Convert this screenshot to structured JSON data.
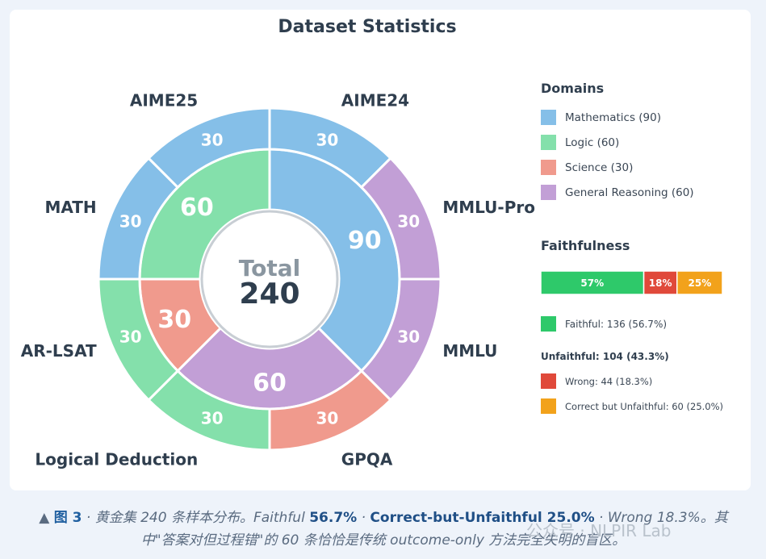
{
  "chart_data": {
    "type": "pie",
    "title": "Dataset Statistics",
    "center": {
      "label": "Total",
      "value": "240"
    },
    "inner_ring": [
      {
        "name": "Mathematics",
        "value": 90,
        "label": "90",
        "color": "#85bfe8"
      },
      {
        "name": "General Reasoning",
        "value": 60,
        "label": "60",
        "color": "#c29fd6"
      },
      {
        "name": "Science",
        "value": 30,
        "label": "30",
        "color": "#f09a8d"
      },
      {
        "name": "Logic",
        "value": 60,
        "label": "60",
        "color": "#84e0ab"
      }
    ],
    "outer_ring": [
      {
        "name": "AIME24",
        "value": 30,
        "label": "30",
        "color": "#85bfe8"
      },
      {
        "name": "MMLU-Pro",
        "value": 30,
        "label": "30",
        "color": "#c29fd6"
      },
      {
        "name": "MMLU",
        "value": 30,
        "label": "30",
        "color": "#c29fd6"
      },
      {
        "name": "GPQA",
        "value": 30,
        "label": "30",
        "color": "#f09a8d"
      },
      {
        "name": "Logical Deduction",
        "value": 30,
        "label": "30",
        "color": "#84e0ab"
      },
      {
        "name": "AR-LSAT",
        "value": 30,
        "label": "30",
        "color": "#84e0ab"
      },
      {
        "name": "MATH",
        "value": 30,
        "label": "30",
        "color": "#85bfe8"
      },
      {
        "name": "AIME25",
        "value": 30,
        "label": "30",
        "color": "#85bfe8"
      }
    ],
    "domains_legend": {
      "title": "Domains",
      "items": [
        {
          "label": "Mathematics (90)",
          "color": "#85bfe8"
        },
        {
          "label": "Logic (60)",
          "color": "#84e0ab"
        },
        {
          "label": "Science (30)",
          "color": "#f09a8d"
        },
        {
          "label": "General Reasoning (60)",
          "color": "#c29fd6"
        }
      ]
    },
    "faithfulness": {
      "title": "Faithfulness",
      "bar": [
        {
          "label": "57%",
          "value": 56.7,
          "color": "#2ec96a"
        },
        {
          "label": "18%",
          "value": 18.3,
          "color": "#e0493a"
        },
        {
          "label": "25%",
          "value": 25.0,
          "color": "#f2a21b"
        }
      ],
      "faithful": {
        "label": "Faithful: 136 (56.7%)",
        "color": "#2ec96a"
      },
      "unfaithful_heading": "Unfaithful: 104 (43.3%)",
      "unfaithful_items": [
        {
          "label": "Wrong: 44 (18.3%)",
          "color": "#e0493a"
        },
        {
          "label": "Correct but Unfaithful: 60 (25.0%)",
          "color": "#f2a21b"
        }
      ]
    }
  },
  "caption": {
    "prefix": "▲ ",
    "fig": "图 3",
    "t1": " · 黄金集 240 条样本分布。Faithful ",
    "v1": "56.7%",
    "t2": " · ",
    "v2": "Correct-but-Unfaithful 25.0%",
    "t3": " · Wrong 18.3%。其中\"答案对但过程错\"的 60 条恰恰是传统 outcome-only 方法完全失明的盲区。"
  },
  "watermark": "公众号 · NLPIR Lab"
}
